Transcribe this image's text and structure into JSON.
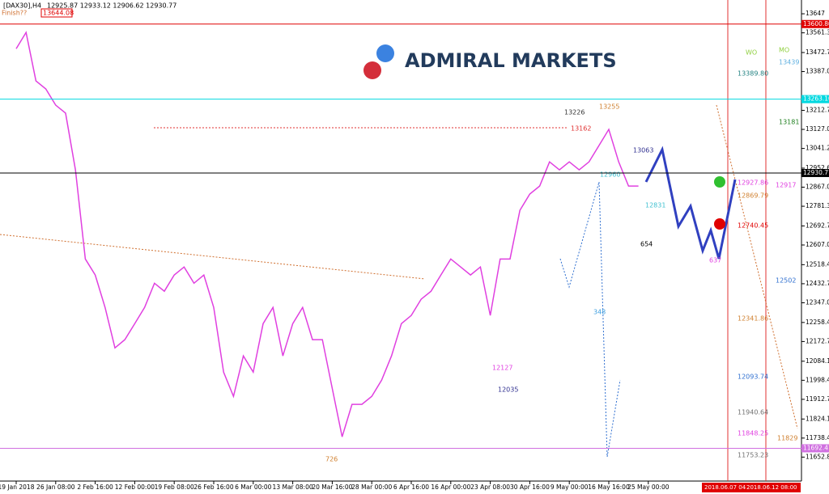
{
  "header": {
    "symbol": "[DAX30],H4",
    "ohlc": "12925.87 12933.12 12906.62 12930.77",
    "finish": "Finish??",
    "finish_price": "13644.08"
  },
  "logo": "ADMIRAL MARKETS",
  "chart_data": {
    "type": "line",
    "color": "#e040e0",
    "categories": [
      "19 Jan 2018",
      null,
      null,
      null,
      "26 Jan 08:00",
      null,
      null,
      null,
      "2 Feb 16:00",
      null,
      null,
      null,
      "12 Feb 00:00",
      null,
      null,
      null,
      "19 Feb 08:00",
      null,
      null,
      null,
      "26 Feb 16:00",
      null,
      null,
      null,
      "6 Mar 00:00",
      null,
      null,
      null,
      "13 Mar 08:00",
      null,
      null,
      null,
      "20 Mar 16:00",
      null,
      null,
      null,
      "28 Mar 00:00",
      null,
      null,
      null,
      "6 Apr 16:00",
      null,
      null,
      null,
      "16 Apr 00:00",
      null,
      null,
      null,
      "23 Apr 08:00",
      null,
      null,
      null,
      "30 Apr 16:00",
      null,
      null,
      null,
      "9 May 00:00",
      null,
      null,
      null,
      "16 May 16:00",
      null,
      null,
      null,
      "25 May 00:00"
    ],
    "series": [
      {
        "name": "DAX30",
        "color": "#e040e0",
        "values": [
          13490,
          13563,
          13345,
          13309,
          13236,
          13200,
          12945,
          12544,
          12472,
          12326,
          12144,
          12181,
          12253,
          12326,
          12435,
          12399,
          12472,
          12508,
          12435,
          12472,
          12326,
          12035,
          11926,
          12108,
          12035,
          12253,
          12326,
          12108,
          12253,
          12326,
          12181,
          12181,
          11962,
          11744,
          11890,
          11890,
          11926,
          11999,
          12108,
          12253,
          12290,
          12363,
          12399,
          12472,
          12544,
          12508,
          12472,
          12508,
          12290,
          12544,
          12544,
          12763,
          12836,
          12872,
          12981,
          12945,
          12981,
          12945,
          12981,
          13054,
          13127,
          12981,
          12872,
          12872,
          null
        ]
      }
    ],
    "ylim": [
      11545,
      13709
    ],
    "yticks": [
      13647,
      {
        "value": 13561.3,
        "label": "13561.30"
      },
      {
        "value": 13472.7,
        "label": "13472.70"
      },
      {
        "value": 13387,
        "label": "13387.00"
      },
      {
        "value": 13212.7,
        "label": "13212.70"
      },
      {
        "value": 13127,
        "label": "13127.00"
      },
      {
        "value": 13041.2,
        "label": "13041.20"
      },
      {
        "value": 12952.6,
        "label": "12952.60"
      },
      {
        "value": 12867,
        "label": "12867.00"
      },
      {
        "value": 12781.3,
        "label": "12781.30"
      },
      {
        "value": 12692.7,
        "label": "12692.70"
      },
      {
        "value": 12607,
        "label": "12607.00"
      },
      {
        "value": 12518.4,
        "label": "12518.40"
      },
      {
        "value": 12432.7,
        "label": "12432.70"
      },
      {
        "value": 12347,
        "label": "12347.00"
      },
      {
        "value": 12258.4,
        "label": "12258.40"
      },
      {
        "value": 12172.7,
        "label": "12172.70"
      },
      {
        "value": 12084.1,
        "label": "12084.10"
      },
      {
        "value": 11998.4,
        "label": "11998.40"
      },
      {
        "value": 11912.7,
        "label": "11912.70"
      },
      {
        "value": 11824.1,
        "label": "11824.10"
      },
      {
        "value": 11738.4,
        "label": "11738.40"
      },
      {
        "value": 11652.8,
        "label": "11652.80"
      }
    ],
    "levels": [
      {
        "value": 13600.8,
        "label": "13600.80",
        "color": "#e00000"
      },
      {
        "value": 13263.1,
        "label": "13263.10",
        "color": "#00d8e0"
      },
      {
        "value": 12930.77,
        "label": "12930.77",
        "color": "#000000"
      },
      {
        "value": 11692.41,
        "label": "11692.41",
        "color": "#d070e0"
      }
    ]
  },
  "annotations": [
    "13226",
    "13255",
    "13162",
    "13063",
    "12960",
    "12831",
    "654",
    "637",
    "348",
    "12127",
    "12035",
    "726",
    "13389.80",
    "13181",
    "12927.86",
    "12917",
    "12869.79",
    "12740.45",
    "12502",
    "12341.86",
    "12093.74",
    "11940.64",
    "11848.25",
    "11829",
    "11753.23",
    "13439",
    "WO",
    "MO"
  ],
  "footer": [
    "2018.06.07 04",
    "2018.06.12 08:00"
  ]
}
